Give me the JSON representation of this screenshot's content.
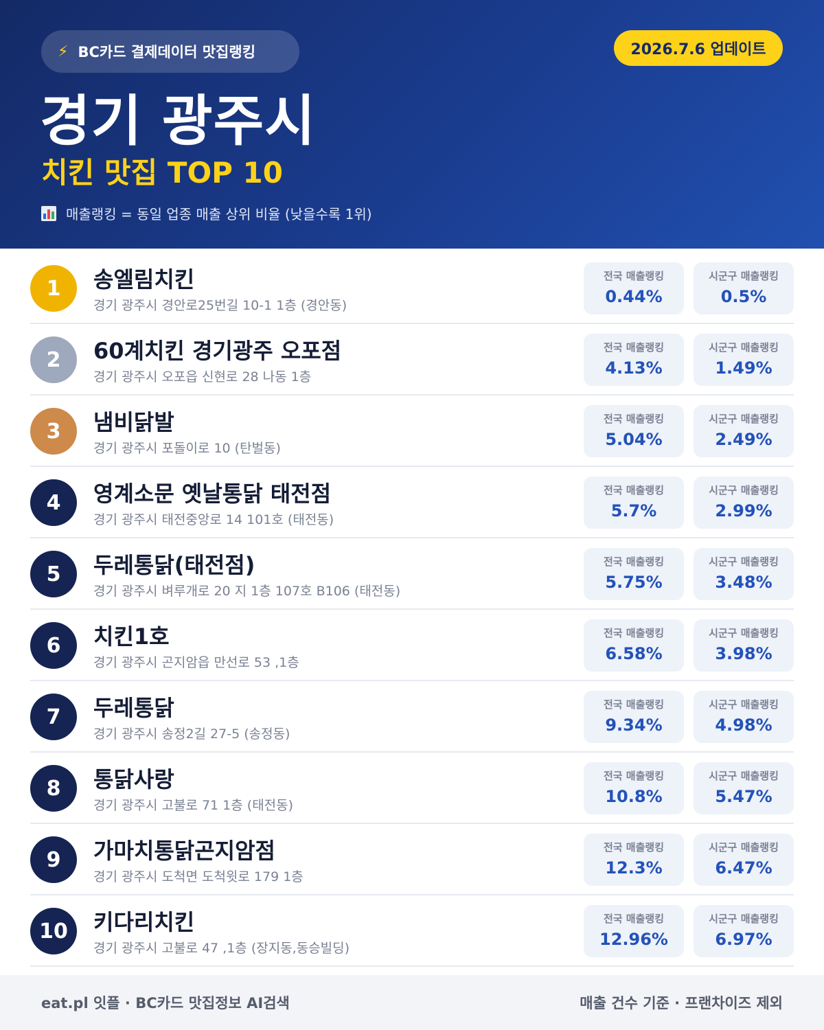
{
  "header": {
    "badge_icon": "lightning-bolt-icon",
    "badge_label": "BC카드 결제데이터 맛집랭킹",
    "update_label": "2026.7.6 업데이트",
    "city": "경기 광주시",
    "subtitle": "치킨 맛집 TOP 10",
    "legend_icon": "bar-chart-icon",
    "legend_text": "매출랭킹 = 동일 업종 매출 상위 비율 (낮을수록 1위)"
  },
  "colors": {
    "header_bg": "#1a3c8f",
    "accent_yellow": "#ffd21a",
    "rank_gold": "#f0b400",
    "rank_silver": "#9fa9bd",
    "rank_bronze": "#cd8a4a",
    "rank_default": "#152452",
    "value_blue": "#2352b8"
  },
  "stat_labels": {
    "national": "전국 매출랭킹",
    "district": "시군구 매출랭킹"
  },
  "restaurants": [
    {
      "rank": "1",
      "name": "송엘림치킨",
      "address": "경기 광주시 경안로25번길 10-1 1층 (경안동)",
      "national": "0.44%",
      "district": "0.5%"
    },
    {
      "rank": "2",
      "name": "60계치킨 경기광주 오포점",
      "address": "경기 광주시 오포읍 신현로 28 나동 1층",
      "national": "4.13%",
      "district": "1.49%"
    },
    {
      "rank": "3",
      "name": "냄비닭발",
      "address": "경기 광주시 포돌이로 10 (탄벌동)",
      "national": "5.04%",
      "district": "2.49%"
    },
    {
      "rank": "4",
      "name": "영계소문 옛날통닭 태전점",
      "address": "경기 광주시 태전중앙로 14 101호 (태전동)",
      "national": "5.7%",
      "district": "2.99%"
    },
    {
      "rank": "5",
      "name": "두레통닭(태전점)",
      "address": "경기 광주시 벼루개로 20 지 1층 107호 B106 (태전동)",
      "national": "5.75%",
      "district": "3.48%"
    },
    {
      "rank": "6",
      "name": "치킨1호",
      "address": "경기 광주시 곤지암읍 만선로 53 ,1층",
      "national": "6.58%",
      "district": "3.98%"
    },
    {
      "rank": "7",
      "name": "두레통닭",
      "address": "경기 광주시 송정2길 27-5 (송정동)",
      "national": "9.34%",
      "district": "4.98%"
    },
    {
      "rank": "8",
      "name": "통닭사랑",
      "address": "경기 광주시 고불로 71 1층 (태전동)",
      "national": "10.8%",
      "district": "5.47%"
    },
    {
      "rank": "9",
      "name": "가마치통닭곤지암점",
      "address": "경기 광주시 도척면 도척윗로 179 1층",
      "national": "12.3%",
      "district": "6.47%"
    },
    {
      "rank": "10",
      "name": "키다리치킨",
      "address": "경기 광주시 고불로 47 ,1층 (장지동,동승빌딩)",
      "national": "12.96%",
      "district": "6.97%"
    }
  ],
  "footer": {
    "left": "eat.pl 잇플 · BC카드 맛집정보 AI검색",
    "right": "매출 건수 기준 · 프랜차이즈 제외"
  }
}
